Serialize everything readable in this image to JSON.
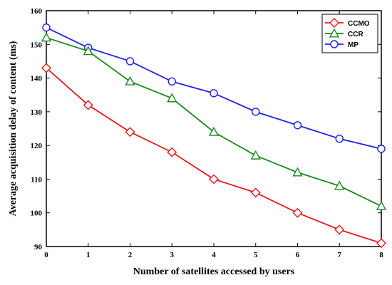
{
  "chart_data": {
    "type": "line",
    "xlabel": "Number of satellites accessed by users",
    "ylabel": "Average acquisition delay of content (ms)",
    "x": [
      0,
      1,
      2,
      3,
      4,
      5,
      6,
      7,
      8
    ],
    "xlim": [
      0,
      8
    ],
    "ylim": [
      90,
      160
    ],
    "x_ticks": [
      0,
      1,
      2,
      3,
      4,
      5,
      6,
      7,
      8
    ],
    "y_ticks": [
      90,
      100,
      110,
      120,
      130,
      140,
      150,
      160
    ],
    "grid": false,
    "legend_position": "top-right",
    "series": [
      {
        "name": "CCMO",
        "marker": "diamond",
        "color": "#e8191c",
        "values": [
          143,
          132,
          124,
          118,
          110,
          106,
          100,
          95,
          91
        ]
      },
      {
        "name": "CCR",
        "marker": "triangle",
        "color": "#1c8a1c",
        "values": [
          152,
          148,
          139,
          134,
          124,
          117,
          112,
          108,
          102
        ]
      },
      {
        "name": "MP",
        "marker": "circle",
        "color": "#1f1fe8",
        "values": [
          155,
          149,
          145,
          139,
          135.5,
          130,
          126,
          122,
          119
        ]
      }
    ]
  }
}
